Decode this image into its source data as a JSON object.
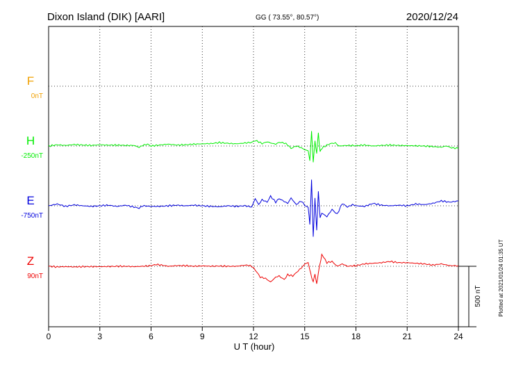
{
  "header": {
    "station": "Dixon Island (DIK)  [AARI]",
    "coords": "GG ( 73.55°,  80.57°)",
    "date": "2020/12/24"
  },
  "side_note": "Plotted at 2021/01/24 01:35 UT",
  "scale_bar": {
    "label": "500 nT",
    "value_nT": 500
  },
  "chart_data": {
    "type": "line",
    "xlabel": "U T (hour)",
    "xlim": [
      0,
      24
    ],
    "xticks": [
      "0",
      "3",
      "6",
      "9",
      "12",
      "15",
      "18",
      "21",
      "24"
    ],
    "grid": true,
    "series": [
      {
        "name": "F",
        "baseline_label": "0nT",
        "color": "#f0a000",
        "values": []
      },
      {
        "name": "H",
        "baseline_label": "-250nT",
        "color": "#00ee00",
        "x": [
          0,
          0.5,
          1,
          1.5,
          2,
          2.5,
          3,
          3.5,
          4,
          4.5,
          5,
          5.3,
          5.5,
          5.8,
          6,
          6.5,
          7,
          7.5,
          8,
          8.5,
          9,
          9.5,
          10,
          10.5,
          11,
          11.5,
          11.9,
          12.1,
          12.3,
          12.5,
          12.8,
          13,
          13.3,
          13.5,
          13.8,
          14,
          14.2,
          14.5,
          14.8,
          15,
          15.2,
          15.3,
          15.4,
          15.5,
          15.6,
          15.7,
          15.8,
          15.9,
          16,
          16.2,
          16.5,
          16.8,
          17,
          17.5,
          18,
          18.5,
          19,
          19.5,
          20,
          20.5,
          21,
          21.5,
          22,
          22.5,
          23,
          23.3,
          23.6,
          24
        ],
        "y": [
          0,
          10,
          5,
          12,
          8,
          5,
          10,
          7,
          8,
          5,
          5,
          -12,
          5,
          15,
          0,
          8,
          15,
          8,
          10,
          15,
          18,
          20,
          28,
          22,
          18,
          25,
          30,
          45,
          35,
          20,
          35,
          25,
          15,
          30,
          25,
          10,
          -20,
          0,
          -15,
          -30,
          -40,
          -120,
          120,
          -130,
          40,
          -60,
          110,
          -50,
          -20,
          0,
          20,
          25,
          0,
          5,
          3,
          8,
          0,
          5,
          8,
          5,
          3,
          2,
          0,
          -5,
          -10,
          0,
          -15,
          -20
        ]
      },
      {
        "name": "E",
        "baseline_label": "-750nT",
        "color": "#0000dd",
        "x": [
          0,
          0.5,
          1,
          1.5,
          2,
          2.5,
          3,
          3.5,
          4,
          4.5,
          5,
          5.3,
          5.5,
          6,
          6.5,
          7,
          7.5,
          8,
          8.5,
          9,
          9.5,
          10,
          10.5,
          11,
          11.5,
          11.9,
          12.1,
          12.3,
          12.5,
          12.8,
          13,
          13.3,
          13.5,
          14,
          14.2,
          14.5,
          14.8,
          15,
          15.2,
          15.3,
          15.4,
          15.5,
          15.6,
          15.7,
          15.8,
          15.9,
          16,
          16.3,
          16.6,
          16.9,
          17.2,
          17.5,
          17.8,
          18,
          18.5,
          19,
          19.5,
          20,
          20.5,
          21,
          21.5,
          22,
          22.5,
          23,
          23.5,
          24
        ],
        "y": [
          0,
          15,
          -5,
          8,
          0,
          -5,
          0,
          5,
          -5,
          5,
          -10,
          -20,
          0,
          -5,
          -5,
          0,
          5,
          0,
          5,
          0,
          -5,
          -8,
          0,
          -5,
          0,
          -10,
          60,
          10,
          50,
          30,
          80,
          30,
          60,
          20,
          65,
          10,
          40,
          5,
          -15,
          -150,
          210,
          -250,
          60,
          -200,
          120,
          -100,
          -60,
          -90,
          -30,
          -70,
          20,
          -10,
          10,
          0,
          -5,
          20,
          5,
          0,
          5,
          0,
          15,
          10,
          20,
          40,
          30,
          40
        ]
      },
      {
        "name": "Z",
        "baseline_label": "90nT",
        "color": "#ee0000",
        "x": [
          0,
          0.5,
          1,
          1.5,
          2,
          2.5,
          3,
          3.5,
          4,
          4.5,
          5,
          5.5,
          6,
          6.3,
          6.6,
          7,
          7.5,
          8,
          8.5,
          9,
          9.5,
          10,
          10.5,
          11,
          11.3,
          11.6,
          11.9,
          12.1,
          12.4,
          12.7,
          13,
          13.3,
          13.5,
          13.8,
          14,
          14.3,
          14.6,
          14.9,
          15,
          15.2,
          15.3,
          15.4,
          15.5,
          15.6,
          15.7,
          15.8,
          15.9,
          16,
          16.3,
          16.6,
          16.9,
          17.2,
          17.5,
          18,
          18.5,
          19,
          19.5,
          20,
          20.5,
          21,
          21.5,
          22,
          22.5,
          23,
          23.5,
          24
        ],
        "y": [
          0,
          -5,
          -3,
          -5,
          -3,
          -3,
          -3,
          -2,
          0,
          0,
          -3,
          0,
          5,
          15,
          10,
          0,
          5,
          5,
          0,
          3,
          0,
          2,
          0,
          0,
          5,
          10,
          0,
          -30,
          -90,
          -100,
          -130,
          -90,
          -80,
          -110,
          -70,
          -80,
          -40,
          0,
          20,
          30,
          -30,
          -90,
          -130,
          -60,
          -150,
          -50,
          20,
          100,
          30,
          40,
          0,
          20,
          0,
          5,
          20,
          25,
          30,
          40,
          30,
          30,
          25,
          20,
          10,
          20,
          5,
          5
        ]
      }
    ]
  }
}
